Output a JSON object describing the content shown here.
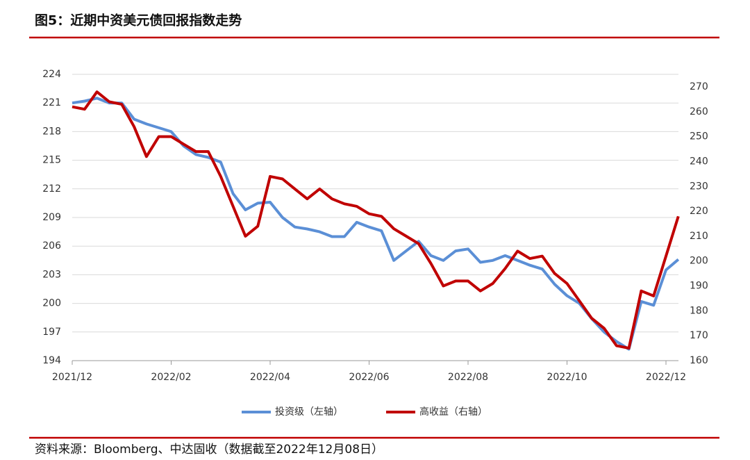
{
  "chart_data": {
    "type": "line",
    "title": "图5：近期中资美元债回报指数走势",
    "source": "资料来源：Bloomberg、中达固收（数据截至2022年12月08日）",
    "categories": [
      "2021/12",
      null,
      null,
      null,
      null,
      null,
      null,
      null,
      "2022/02",
      null,
      null,
      null,
      null,
      null,
      null,
      null,
      "2022/04",
      null,
      null,
      null,
      null,
      null,
      null,
      null,
      "2022/06",
      null,
      null,
      null,
      null,
      null,
      null,
      null,
      "2022/08",
      null,
      null,
      null,
      null,
      null,
      null,
      null,
      "2022/10",
      null,
      null,
      null,
      null,
      null,
      null,
      null,
      "2022/12",
      null
    ],
    "series": [
      {
        "name": "投资级（左轴）",
        "color": "#5b8fd6",
        "axis": "y",
        "values": [
          221,
          221.2,
          221.5,
          221,
          221,
          219.3,
          218.8,
          218.4,
          218,
          216.5,
          215.6,
          215.3,
          214.8,
          211.5,
          209.8,
          210.5,
          210.6,
          209,
          208,
          207.8,
          207.5,
          207,
          207,
          208.5,
          208,
          207.6,
          204.5,
          205.5,
          206.5,
          205,
          204.5,
          205.5,
          205.7,
          204.3,
          204.5,
          205,
          204.5,
          204,
          203.6,
          202,
          200.8,
          200,
          198.4,
          197,
          196,
          195.2,
          200.2,
          199.8,
          203.5,
          204.6
        ]
      },
      {
        "name": "高收益（右轴）",
        "color": "#c00000",
        "axis": "y2",
        "values": [
          262,
          261,
          268,
          264,
          263,
          254,
          242,
          250,
          250,
          247,
          244,
          244,
          234,
          222,
          210,
          214,
          234,
          233,
          229,
          225,
          229,
          225,
          223,
          222,
          219,
          218,
          213,
          210,
          207,
          199,
          190,
          192,
          192,
          188,
          191,
          197,
          204,
          201,
          202,
          195,
          191,
          184,
          177,
          173,
          166,
          165,
          188,
          186,
          202,
          218
        ]
      }
    ],
    "ylim": [
      194,
      224
    ],
    "yticks": [
      194,
      197,
      200,
      203,
      206,
      209,
      212,
      215,
      218,
      221,
      224
    ],
    "y2lim": [
      160,
      270
    ],
    "y2ticks": [
      160,
      170,
      180,
      190,
      200,
      210,
      220,
      230,
      240,
      250,
      260,
      270
    ],
    "grid": true
  }
}
